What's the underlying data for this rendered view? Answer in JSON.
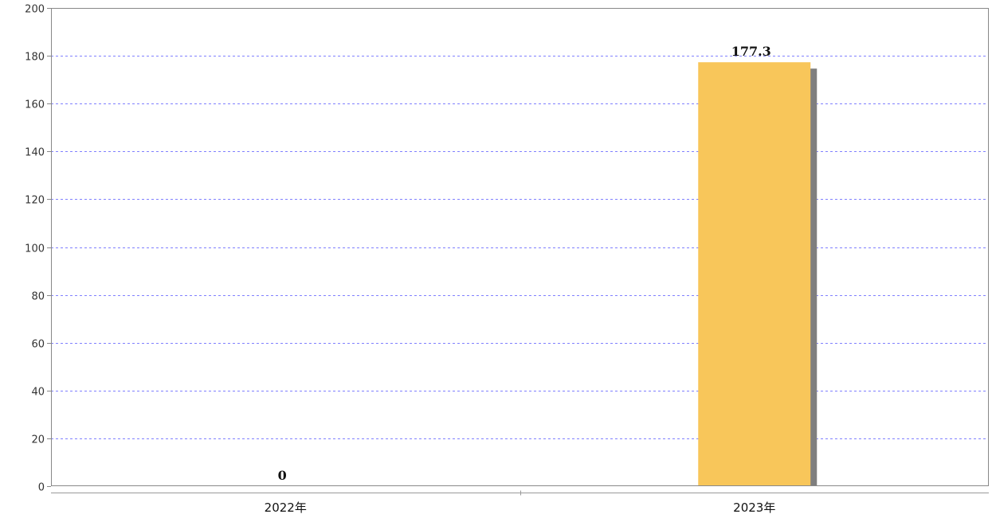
{
  "chart_data": {
    "type": "bar",
    "categories": [
      "2022年",
      "2023年"
    ],
    "values": [
      0,
      177.3
    ],
    "value_labels": [
      "0",
      "177.3"
    ],
    "ylim": [
      0,
      200
    ],
    "yticks": [
      0,
      20,
      40,
      60,
      80,
      100,
      120,
      140,
      160,
      180,
      200
    ],
    "grid": true,
    "colors": {
      "bar": "#F8C65A",
      "shadow": "#7F7F7F",
      "grid": "#6B6BFF",
      "frame": "#888888"
    }
  }
}
